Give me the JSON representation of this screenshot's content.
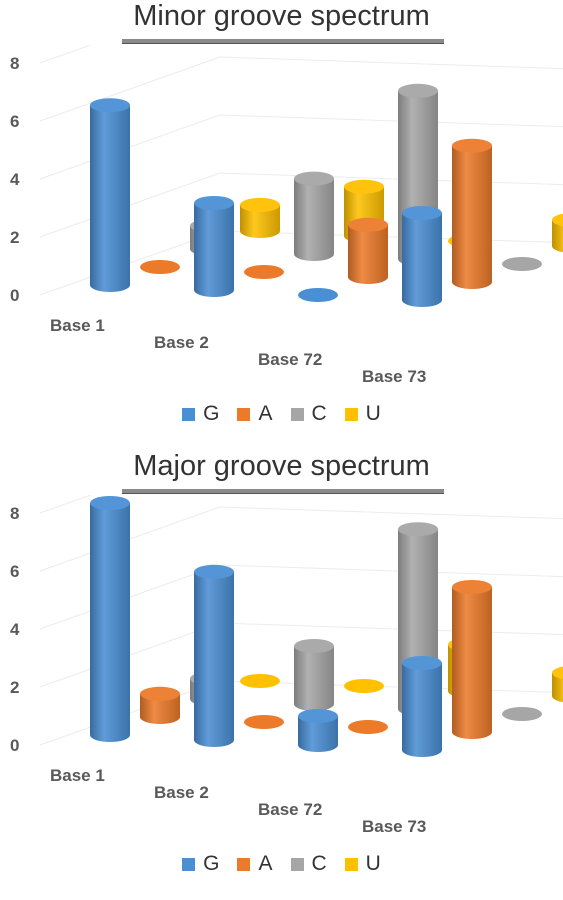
{
  "chart_data": [
    {
      "type": "bar",
      "title": "Minor groove spectrum",
      "categories": [
        "Base 1",
        "Base 2",
        "Base 72",
        "Base 73"
      ],
      "series": [
        {
          "name": "G",
          "values": [
            6.2,
            3.0,
            0.0,
            3.0
          ]
        },
        {
          "name": "A",
          "values": [
            0.0,
            0.0,
            1.8,
            4.7
          ]
        },
        {
          "name": "C",
          "values": [
            0.8,
            2.6,
            5.8,
            0.0
          ]
        },
        {
          "name": "U",
          "values": [
            0.9,
            1.7,
            0.0,
            0.9
          ]
        }
      ],
      "yticks": [
        "0",
        "2",
        "4",
        "6",
        "8"
      ],
      "ylim": [
        0,
        8
      ],
      "legend": "bottom",
      "colors": {
        "G": "#4a8fd4",
        "A": "#ec7a2b",
        "C": "#a6a6a6",
        "U": "#ffc000"
      }
    },
    {
      "type": "bar",
      "title": "Major groove spectrum",
      "categories": [
        "Base 1",
        "Base 2",
        "Base 72",
        "Base 73"
      ],
      "series": [
        {
          "name": "G",
          "values": [
            8.0,
            5.8,
            1.0,
            3.0
          ]
        },
        {
          "name": "A",
          "values": [
            0.8,
            0.0,
            0.0,
            5.0
          ]
        },
        {
          "name": "C",
          "values": [
            0.7,
            2.0,
            6.2,
            0.0
          ]
        },
        {
          "name": "U",
          "values": [
            0.0,
            0.0,
            1.6,
            0.8
          ]
        }
      ],
      "yticks": [
        "0",
        "2",
        "4",
        "6",
        "8"
      ],
      "ylim": [
        0,
        8
      ],
      "legend": "bottom",
      "colors": {
        "G": "#4a8fd4",
        "A": "#ec7a2b",
        "C": "#a6a6a6",
        "U": "#ffc000"
      }
    }
  ]
}
